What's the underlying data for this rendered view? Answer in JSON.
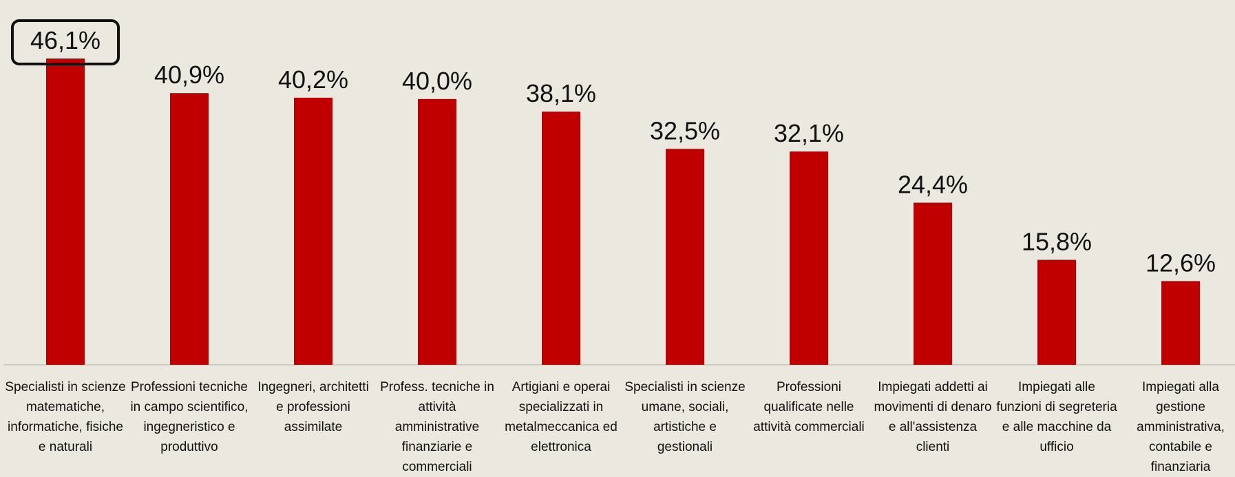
{
  "chart_data": {
    "type": "bar",
    "categories": [
      "Specialisti in scienze matematiche, informatiche, fisiche e naturali",
      "Professioni tecniche in campo scientifico, ingegneristico e produttivo",
      "Ingegneri, architetti e professioni assimilate",
      "Profess. tecniche in attività amministrative finanziarie e commerciali",
      "Artigiani e operai specializzati in metalmeccanica ed elettronica",
      "Specialisti in scienze umane, sociali, artistiche e gestionali",
      "Professioni qualificate nelle attività commerciali",
      "Impiegati addetti ai movimenti di denaro e all'assistenza clienti",
      "Impiegati alle funzioni di segreteria e alle macchine da ufficio",
      "Impiegati alla gestione amministrativa, contabile e finanziaria"
    ],
    "values": [
      46.1,
      40.9,
      40.2,
      40.0,
      38.1,
      32.5,
      32.1,
      24.4,
      15.8,
      12.6
    ],
    "value_labels": [
      "46,1%",
      "40,9%",
      "40,2%",
      "40,0%",
      "38,1%",
      "32,5%",
      "32,1%",
      "24,4%",
      "15,8%",
      "12,6%"
    ],
    "color": "#c00000"
  }
}
